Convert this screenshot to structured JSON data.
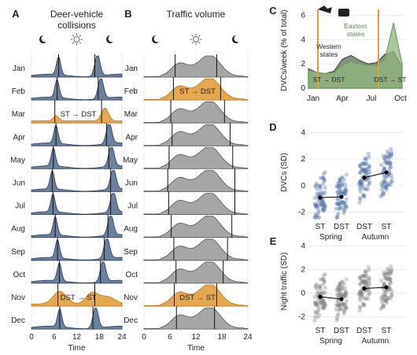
{
  "panels": [
    {
      "letter": "A",
      "title_lines": [
        "Deer-vehicle",
        "collisions"
      ],
      "xlabel": "Time",
      "ticks": [
        "0",
        "6",
        "12",
        "18",
        "24"
      ]
    },
    {
      "letter": "B",
      "title_lines": [
        "Traffic volume"
      ],
      "xlabel": "Time",
      "ticks": [
        "0",
        "6",
        "12",
        "18",
        "24"
      ]
    }
  ],
  "month_labels": [
    "Jan",
    "Feb",
    "Mar",
    "Apr",
    "May",
    "Jun",
    "Jul",
    "Aug",
    "Sep",
    "Oct",
    "Nov",
    "Dec"
  ],
  "ridge_annotations": {
    "spring": "ST → DST",
    "autumn": "DST → ST"
  },
  "colors": {
    "blue": "#5b7194",
    "blue_edge": "#2c3e5c",
    "orange": "#e39f3b",
    "orange_edge": "#b5761c",
    "gray": "#9c9c9c",
    "dark_gray": "#6f6f6f",
    "green": "#5b8a4f",
    "spring_line": "#e39f3b"
  },
  "panel_c": {
    "letter": "C",
    "ylabel": "DVCs/week (% of total)",
    "yticks": [
      "0",
      "2",
      "4",
      "6"
    ],
    "xticks": [
      "Jan",
      "Apr",
      "Jul",
      "Oct"
    ],
    "labels": {
      "eastern": "Eastern\nstates",
      "western": "Western\nstates",
      "spring": "ST → DST",
      "autumn": "DST → ST"
    }
  },
  "panel_d": {
    "letter": "D",
    "ylabel": "DVCs (SD)",
    "yticks": [
      "4",
      "2",
      "0",
      "-2"
    ],
    "xticks": [
      "ST",
      "DST",
      "DST",
      "ST"
    ],
    "groups": [
      "Spring",
      "Autumn"
    ]
  },
  "panel_e": {
    "letter": "E",
    "ylabel": "Night traffic (SD)",
    "yticks": [
      "4",
      "2",
      "0",
      "-2"
    ],
    "xticks": [
      "ST",
      "DST",
      "DST",
      "ST"
    ],
    "groups": [
      "Spring",
      "Autumn"
    ]
  },
  "chart_data": [
    {
      "type": "area",
      "name": "Deer-vehicle collisions by hour and month",
      "x_unit": "hour",
      "x_range": [
        0,
        24
      ],
      "rows": [
        "Jan",
        "Feb",
        "Mar",
        "Apr",
        "May",
        "Jun",
        "Jul",
        "Aug",
        "Sep",
        "Oct",
        "Nov",
        "Dec"
      ],
      "highlighted_rows": [
        "Mar",
        "Nov"
      ],
      "sunrise_hour": [
        7.2,
        6.8,
        6.2,
        6.5,
        5.8,
        5.5,
        5.7,
        6.3,
        6.9,
        7.4,
        7.0,
        7.5
      ],
      "sunset_hour": [
        16.8,
        17.7,
        18.6,
        19.9,
        20.5,
        21.0,
        21.0,
        20.3,
        19.3,
        18.3,
        16.8,
        16.3
      ]
    },
    {
      "type": "area",
      "name": "Traffic volume by hour and month",
      "x_unit": "hour",
      "x_range": [
        0,
        24
      ],
      "rows": [
        "Jan",
        "Feb",
        "Mar",
        "Apr",
        "May",
        "Jun",
        "Jul",
        "Aug",
        "Sep",
        "Oct",
        "Nov",
        "Dec"
      ],
      "highlighted_rows": [
        "Feb",
        "Nov"
      ]
    },
    {
      "type": "line",
      "x_range": [
        "Jan",
        "Dec"
      ],
      "ylim": [
        0,
        6.5
      ],
      "series": [
        {
          "name": "Eastern states",
          "values": [
            1.5,
            1.3,
            1.2,
            1.3,
            1.9,
            2.2,
            2.0,
            1.9,
            1.9,
            2.4,
            5.4,
            2.0
          ]
        },
        {
          "name": "Western states",
          "values": [
            1.6,
            1.3,
            1.2,
            1.4,
            2.4,
            2.7,
            2.3,
            2.0,
            2.1,
            2.8,
            3.0,
            1.8
          ]
        }
      ]
    },
    {
      "type": "scatter",
      "categories": [
        "ST",
        "DST",
        "DST",
        "ST"
      ],
      "groups": [
        "Spring",
        "Spring",
        "Autumn",
        "Autumn"
      ],
      "means": [
        -0.9,
        -0.85,
        0.6,
        1.0
      ],
      "ylim": [
        -2.5,
        4.5
      ]
    },
    {
      "type": "scatter",
      "categories": [
        "ST",
        "DST",
        "DST",
        "ST"
      ],
      "groups": [
        "Spring",
        "Spring",
        "Autumn",
        "Autumn"
      ],
      "means": [
        -0.3,
        -0.5,
        0.4,
        0.5
      ],
      "ylim": [
        -2.5,
        4.5
      ]
    }
  ]
}
